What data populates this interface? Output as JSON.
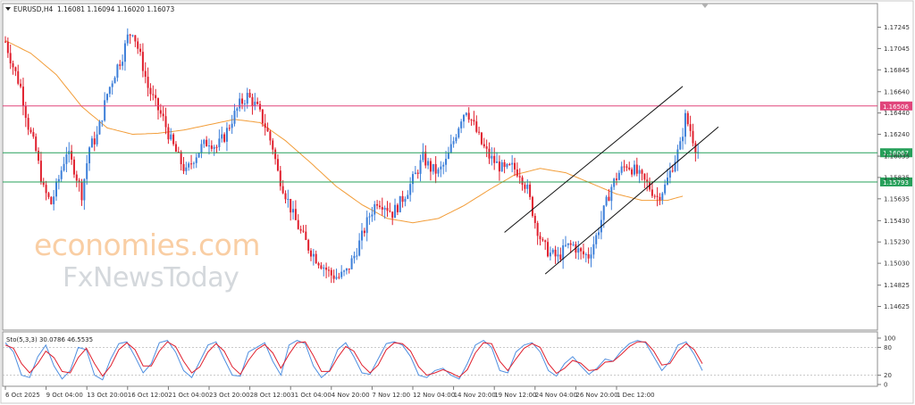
{
  "header": {
    "symbol_timeframe": "EURUSD,H4",
    "ohlc": "1.16081 1.16094 1.16020 1.16073"
  },
  "watermark": {
    "line1": "economies.com",
    "line2": "FxNewsToday"
  },
  "chart_data": [
    {
      "type": "candlestick",
      "symbol": "EURUSD",
      "timeframe": "H4",
      "ylim": [
        1.1442,
        1.1745
      ],
      "y_ticks": [
        "1.17245",
        "1.17045",
        "1.16845",
        "1.16640",
        "1.16440",
        "1.16240",
        "1.16035",
        "1.15835",
        "1.15635",
        "1.15430",
        "1.15230",
        "1.15030",
        "1.14825",
        "1.14625"
      ],
      "x_ticks": [
        "6 Oct 2025",
        "9 Oct 04:00",
        "13 Oct 20:00",
        "16 Oct 12:00",
        "21 Oct 04:00",
        "23 Oct 20:00",
        "28 Oct 12:00",
        "31 Oct 04:00",
        "4 Nov 20:00",
        "7 Nov 12:00",
        "12 Nov 04:00",
        "14 Nov 20:00",
        "19 Nov 12:00",
        "24 Nov 04:00",
        "26 Nov 20:00",
        "1 Dec 12:00"
      ],
      "x_tick_index": [
        0,
        16,
        32,
        48,
        64,
        80,
        96,
        112,
        128,
        144,
        160,
        176,
        192,
        208,
        224,
        240
      ],
      "horizontal_levels": [
        {
          "value": 1.16506,
          "label": "1.16506",
          "color": "#e0457b"
        },
        {
          "value": 1.16067,
          "label": "1.16067",
          "color": "#27a05a"
        },
        {
          "value": 1.15793,
          "label": "1.15793",
          "color": "#27a05a"
        }
      ],
      "channel": {
        "upper": [
          [
            196,
            1.1532
          ],
          [
            266,
            1.1669
          ]
        ],
        "lower": [
          [
            212,
            1.1493
          ],
          [
            280,
            1.1631
          ]
        ]
      },
      "moving_average_color": "#f29d39",
      "bull_color": "#3d7fd9",
      "bear_color": "#e0202e",
      "last_close": 1.16073,
      "close_path": [
        [
          0,
          1.1711
        ],
        [
          3,
          1.1688
        ],
        [
          6,
          1.1668
        ],
        [
          9,
          1.1632
        ],
        [
          12,
          1.1608
        ],
        [
          15,
          1.1572
        ],
        [
          18,
          1.1559
        ],
        [
          21,
          1.1582
        ],
        [
          24,
          1.1608
        ],
        [
          27,
          1.1592
        ],
        [
          30,
          1.1568
        ],
        [
          33,
          1.1612
        ],
        [
          36,
          1.1622
        ],
        [
          38,
          1.1642
        ],
        [
          40,
          1.1662
        ],
        [
          44,
          1.1688
        ],
        [
          46,
          1.1698
        ],
        [
          48,
          1.1715
        ],
        [
          50,
          1.1722
        ],
        [
          52,
          1.1705
        ],
        [
          54,
          1.1688
        ],
        [
          56,
          1.1668
        ],
        [
          59,
          1.1652
        ],
        [
          62,
          1.1638
        ],
        [
          65,
          1.1618
        ],
        [
          68,
          1.1602
        ],
        [
          71,
          1.1588
        ],
        [
          74,
          1.1602
        ],
        [
          77,
          1.1612
        ],
        [
          80,
          1.1618
        ],
        [
          83,
          1.1612
        ],
        [
          86,
          1.1622
        ],
        [
          89,
          1.1638
        ],
        [
          92,
          1.1652
        ],
        [
          95,
          1.166
        ],
        [
          97,
          1.1655
        ],
        [
          99,
          1.1648
        ],
        [
          102,
          1.1632
        ],
        [
          105,
          1.1612
        ],
        [
          107,
          1.1588
        ],
        [
          110,
          1.1568
        ],
        [
          113,
          1.1548
        ],
        [
          116,
          1.1532
        ],
        [
          119,
          1.1518
        ],
        [
          122,
          1.1508
        ],
        [
          125,
          1.15
        ],
        [
          128,
          1.1492
        ],
        [
          131,
          1.149
        ],
        [
          134,
          1.1495
        ],
        [
          137,
          1.151
        ],
        [
          140,
          1.1528
        ],
        [
          143,
          1.1548
        ],
        [
          146,
          1.1562
        ],
        [
          149,
          1.1558
        ],
        [
          152,
          1.155
        ],
        [
          155,
          1.156
        ],
        [
          158,
          1.1572
        ],
        [
          161,
          1.1586
        ],
        [
          164,
          1.1602
        ],
        [
          167,
          1.1592
        ],
        [
          170,
          1.1588
        ],
        [
          173,
          1.1598
        ],
        [
          176,
          1.1618
        ],
        [
          179,
          1.164
        ],
        [
          181,
          1.1648
        ],
        [
          184,
          1.1632
        ],
        [
          187,
          1.1615
        ],
        [
          190,
          1.1603
        ],
        [
          193,
          1.1596
        ],
        [
          196,
          1.159
        ],
        [
          199,
          1.1593
        ],
        [
          202,
          1.1588
        ],
        [
          205,
          1.1572
        ],
        [
          208,
          1.1542
        ],
        [
          211,
          1.152
        ],
        [
          214,
          1.1512
        ],
        [
          217,
          1.1508
        ],
        [
          220,
          1.1518
        ],
        [
          223,
          1.152
        ],
        [
          226,
          1.1512
        ],
        [
          229,
          1.151
        ],
        [
          232,
          1.1528
        ],
        [
          235,
          1.1552
        ],
        [
          238,
          1.1575
        ],
        [
          241,
          1.1588
        ],
        [
          244,
          1.1596
        ],
        [
          247,
          1.159
        ],
        [
          250,
          1.1582
        ],
        [
          253,
          1.1574
        ],
        [
          256,
          1.1565
        ],
        [
          259,
          1.1575
        ],
        [
          262,
          1.1595
        ],
        [
          265,
          1.1613
        ],
        [
          267,
          1.164
        ],
        [
          269,
          1.1628
        ],
        [
          271,
          1.1612
        ],
        [
          272,
          1.1607
        ]
      ],
      "ma_path": [
        [
          0,
          1.1712
        ],
        [
          10,
          1.17
        ],
        [
          20,
          1.168
        ],
        [
          30,
          1.165
        ],
        [
          40,
          1.163
        ],
        [
          50,
          1.1624
        ],
        [
          60,
          1.1625
        ],
        [
          70,
          1.1628
        ],
        [
          80,
          1.1633
        ],
        [
          90,
          1.1638
        ],
        [
          100,
          1.1635
        ],
        [
          110,
          1.1618
        ],
        [
          120,
          1.1597
        ],
        [
          130,
          1.1575
        ],
        [
          140,
          1.1558
        ],
        [
          150,
          1.1545
        ],
        [
          160,
          1.1541
        ],
        [
          170,
          1.1545
        ],
        [
          180,
          1.1557
        ],
        [
          190,
          1.1572
        ],
        [
          200,
          1.1586
        ],
        [
          210,
          1.1592
        ],
        [
          220,
          1.1588
        ],
        [
          230,
          1.1578
        ],
        [
          240,
          1.1568
        ],
        [
          250,
          1.1562
        ],
        [
          260,
          1.1562
        ],
        [
          266,
          1.1566
        ]
      ]
    },
    {
      "type": "line",
      "indicator": "Sto(5,3,3)",
      "title": "Sto(5,3,3) 30.0786 46.5535",
      "ylim": [
        0,
        100
      ],
      "y_ticks": [
        "100",
        "80",
        "20",
        "0"
      ],
      "levels": [
        80,
        20
      ],
      "series": [
        {
          "name": "Sto %K",
          "color": "#4f8fe0",
          "values": [
            90,
            70,
            20,
            15,
            60,
            85,
            40,
            12,
            30,
            80,
            75,
            20,
            10,
            55,
            88,
            92,
            60,
            25,
            45,
            90,
            95,
            70,
            30,
            15,
            50,
            85,
            92,
            55,
            20,
            18,
            70,
            80,
            90,
            50,
            20,
            85,
            95,
            88,
            40,
            15,
            30,
            75,
            90,
            60,
            25,
            22,
            55,
            88,
            92,
            85,
            60,
            20,
            15,
            30,
            35,
            20,
            12,
            45,
            85,
            95,
            80,
            30,
            25,
            70,
            85,
            90,
            70,
            30,
            18,
            45,
            60,
            40,
            22,
            35,
            55,
            50,
            72,
            88,
            95,
            90,
            60,
            30,
            50,
            85,
            92,
            65,
            30
          ]
        },
        {
          "name": "Sto %D",
          "color": "#e0202e",
          "values": [
            85,
            78,
            45,
            25,
            45,
            72,
            58,
            28,
            25,
            58,
            78,
            45,
            18,
            40,
            75,
            90,
            75,
            40,
            40,
            72,
            92,
            82,
            50,
            25,
            38,
            70,
            88,
            72,
            38,
            22,
            52,
            75,
            86,
            68,
            35,
            65,
            90,
            92,
            62,
            28,
            28,
            58,
            82,
            72,
            42,
            25,
            42,
            75,
            90,
            88,
            72,
            38,
            20,
            25,
            32,
            25,
            16,
            32,
            68,
            90,
            88,
            50,
            30,
            55,
            78,
            88,
            80,
            45,
            24,
            35,
            52,
            46,
            30,
            32,
            48,
            50,
            65,
            82,
            92,
            92,
            72,
            42,
            45,
            72,
            88,
            75,
            45
          ]
        }
      ]
    }
  ]
}
